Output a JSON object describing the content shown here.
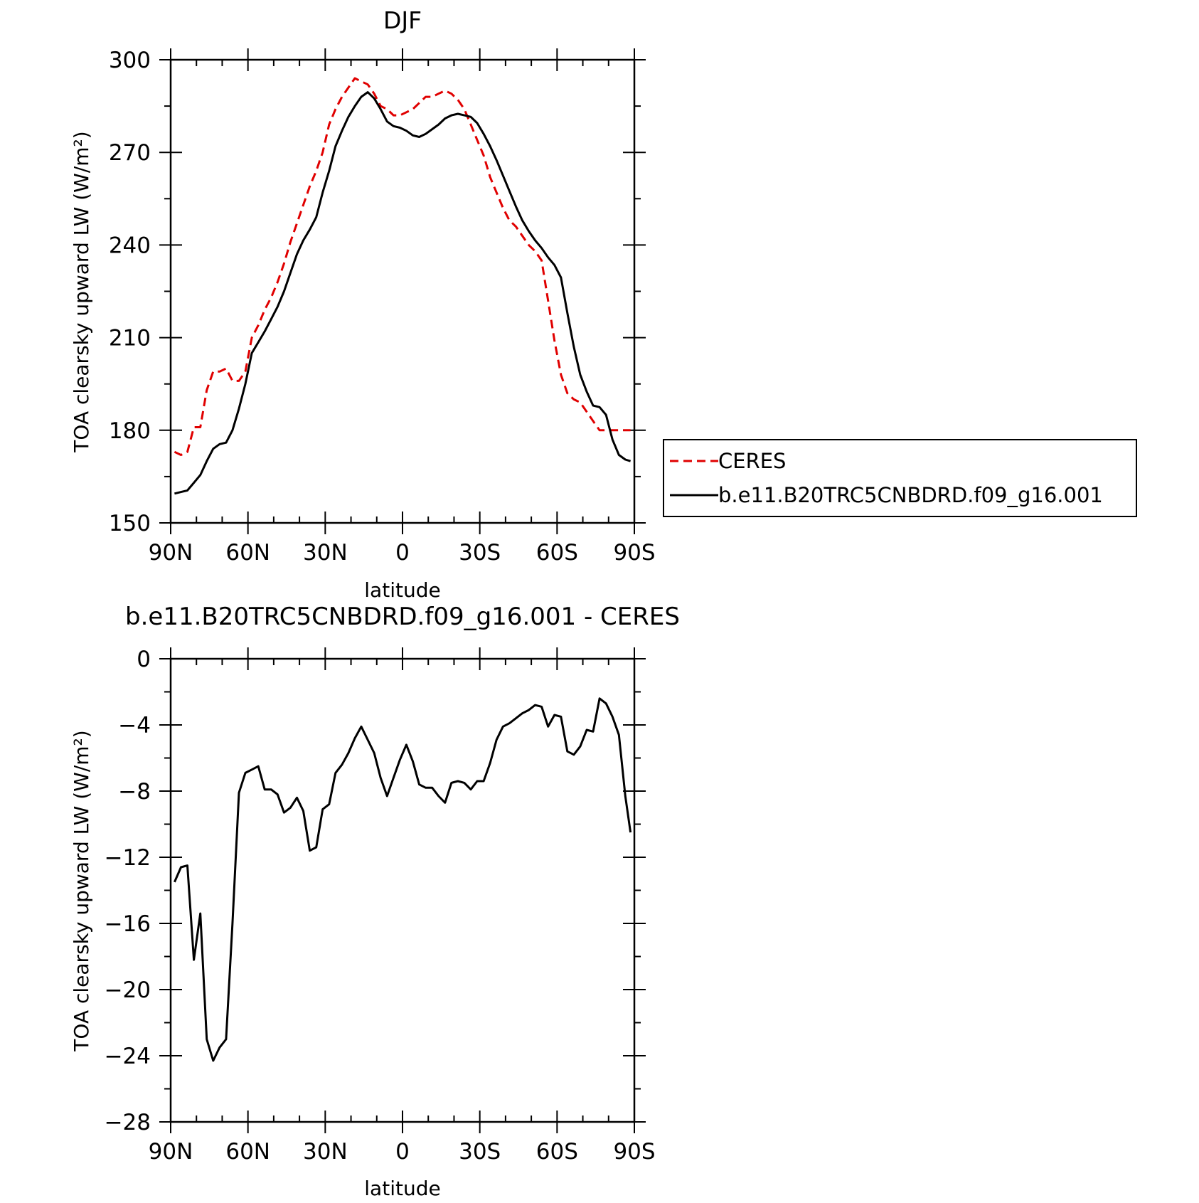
{
  "chart_data": [
    {
      "type": "line",
      "title": "DJF",
      "xlabel": "latitude",
      "ylabel": "TOA clearsky upward LW (W/m²)",
      "xlim": [
        90,
        -90
      ],
      "ylim": [
        150,
        300
      ],
      "x_ticks": [
        {
          "value": 90,
          "label": "90N"
        },
        {
          "value": 60,
          "label": "60N"
        },
        {
          "value": 30,
          "label": "30N"
        },
        {
          "value": 0,
          "label": "0"
        },
        {
          "value": -30,
          "label": "30S"
        },
        {
          "value": -60,
          "label": "60S"
        },
        {
          "value": -90,
          "label": "90S"
        }
      ],
      "y_ticks": [
        150,
        180,
        210,
        240,
        270,
        300
      ],
      "grid": false,
      "legend": {
        "position": "right"
      },
      "series": [
        {
          "name": "CERES",
          "color": "#e00000",
          "dash": "dashed",
          "x": [
            88.5,
            86,
            83.5,
            81,
            78.5,
            76,
            73.5,
            71,
            68.5,
            66,
            63.5,
            61,
            58.5,
            56,
            53.5,
            51,
            48.5,
            46,
            43.5,
            41,
            38.5,
            36,
            33.5,
            31,
            28.5,
            26,
            23.5,
            21,
            18.5,
            16,
            13.5,
            11,
            8.5,
            6,
            3.5,
            1,
            -1.5,
            -4,
            -6.5,
            -9,
            -11.5,
            -14,
            -16.5,
            -19,
            -21.5,
            -24,
            -26.5,
            -29,
            -31.5,
            -34,
            -36.5,
            -39,
            -41.5,
            -44,
            -46.5,
            -49,
            -51.5,
            -54,
            -56.5,
            -59,
            -61.5,
            -64,
            -66.5,
            -69,
            -71.5,
            -74,
            -76.5,
            -79,
            -81.5,
            -84,
            -86.5,
            -88.5
          ],
          "y": [
            173,
            172,
            173,
            181,
            181,
            193,
            199,
            199,
            200,
            196,
            196,
            199,
            210,
            214,
            219,
            223,
            228,
            234,
            241,
            247,
            253,
            259,
            264,
            270,
            279,
            284,
            288,
            291,
            294,
            293,
            292,
            289,
            285,
            284,
            282,
            282,
            283,
            284,
            286,
            288,
            288,
            289,
            290,
            289,
            287,
            284,
            279,
            274,
            269,
            262,
            257,
            252,
            248,
            246,
            243,
            240,
            238,
            235,
            222,
            209,
            198,
            192,
            190,
            189,
            186,
            183,
            180,
            180,
            180,
            180,
            180,
            180
          ]
        },
        {
          "name": "b.e11.B20TRC5CNBDRD.f09_g16.001",
          "color": "#000000",
          "dash": "solid",
          "x": [
            88.5,
            86,
            83.5,
            81,
            78.5,
            76,
            73.5,
            71,
            68.5,
            66,
            63.5,
            61,
            58.5,
            56,
            53.5,
            51,
            48.5,
            46,
            43.5,
            41,
            38.5,
            36,
            33.5,
            31,
            28.5,
            26,
            23.5,
            21,
            18.5,
            16,
            13.5,
            11,
            8.5,
            6,
            3.5,
            1,
            -1.5,
            -4,
            -6.5,
            -9,
            -11.5,
            -14,
            -16.5,
            -19,
            -21.5,
            -24,
            -26.5,
            -29,
            -31.5,
            -34,
            -36.5,
            -39,
            -41.5,
            -44,
            -46.5,
            -49,
            -51.5,
            -54,
            -56.5,
            -59,
            -61.5,
            -64,
            -66.5,
            -69,
            -71.5,
            -74,
            -76.5,
            -79,
            -81.5,
            -84,
            -86.5,
            -88.5
          ],
          "y": [
            159.5,
            160,
            160.5,
            163,
            165.5,
            170,
            174,
            175.5,
            176,
            180,
            187,
            195,
            205,
            208.5,
            212,
            216,
            220,
            225,
            231,
            237,
            241.5,
            245,
            249,
            257,
            264,
            272,
            277,
            281.5,
            285,
            288,
            289.5,
            287.5,
            284,
            280,
            278.5,
            278,
            277,
            275.5,
            275,
            276,
            277.5,
            279,
            281,
            282,
            282.5,
            282,
            281.5,
            279.5,
            276,
            272,
            267.5,
            262.5,
            257.5,
            252.5,
            248,
            244.5,
            241.5,
            239,
            236,
            233.5,
            229.5,
            218,
            207,
            198,
            192.5,
            188,
            187.5,
            185,
            177,
            172,
            170.5,
            170
          ]
        }
      ]
    },
    {
      "type": "line",
      "title": "b.e11.B20TRC5CNBDRD.f09_g16.001 - CERES",
      "xlabel": "latitude",
      "ylabel": "TOA clearsky upward LW (W/m²)",
      "xlim": [
        90,
        -90
      ],
      "ylim": [
        -28,
        0
      ],
      "x_ticks": [
        {
          "value": 90,
          "label": "90N"
        },
        {
          "value": 60,
          "label": "60N"
        },
        {
          "value": 30,
          "label": "30N"
        },
        {
          "value": 0,
          "label": "0"
        },
        {
          "value": -30,
          "label": "30S"
        },
        {
          "value": -60,
          "label": "60S"
        },
        {
          "value": -90,
          "label": "90S"
        }
      ],
      "y_ticks": [
        -28,
        -24,
        -20,
        -16,
        -12,
        -8,
        -4,
        0
      ],
      "grid": false,
      "series": [
        {
          "color": "#000000",
          "dash": "solid",
          "x": [
            88.5,
            86,
            83.5,
            81,
            78.5,
            76,
            73.5,
            71,
            68.5,
            66,
            63.5,
            61,
            58.5,
            56,
            53.5,
            51,
            48.5,
            46,
            43.5,
            41,
            38.5,
            36,
            33.5,
            31,
            28.5,
            26,
            23.5,
            21,
            18.5,
            16,
            13.5,
            11,
            8.5,
            6,
            3.5,
            1,
            -1.5,
            -4,
            -6.5,
            -9,
            -11.5,
            -14,
            -16.5,
            -19,
            -21.5,
            -24,
            -26.5,
            -29,
            -31.5,
            -34,
            -36.5,
            -39,
            -41.5,
            -44,
            -46.5,
            -49,
            -51.5,
            -54,
            -56.5,
            -59,
            -61.5,
            -64,
            -66.5,
            -69,
            -71.5,
            -74,
            -76.5,
            -79,
            -81.5,
            -84,
            -86.5,
            -88.5
          ],
          "y": [
            -13.5,
            -12.6,
            -12.5,
            -18.2,
            -15.4,
            -23,
            -24.3,
            -23.5,
            -23,
            -16,
            -8.1,
            -6.9,
            -6.7,
            -6.5,
            -7.9,
            -7.9,
            -8.2,
            -9.3,
            -9,
            -8.4,
            -9.2,
            -11.6,
            -11.4,
            -9.1,
            -8.8,
            -6.9,
            -6.4,
            -5.7,
            -4.8,
            -4.1,
            -4.9,
            -5.7,
            -7.2,
            -8.3,
            -7.2,
            -6.1,
            -5.2,
            -6.2,
            -7.6,
            -7.8,
            -7.8,
            -8.3,
            -8.7,
            -7.5,
            -7.4,
            -7.5,
            -7.9,
            -7.4,
            -7.4,
            -6.3,
            -4.9,
            -4.1,
            -3.9,
            -3.6,
            -3.3,
            -3.1,
            -2.8,
            -2.9,
            -4.1,
            -3.4,
            -3.5,
            -5.6,
            -5.8,
            -5.3,
            -4.3,
            -4.4,
            -2.4,
            -2.7,
            -3.5,
            -4.6,
            -8.3,
            -10.5
          ]
        }
      ]
    }
  ]
}
